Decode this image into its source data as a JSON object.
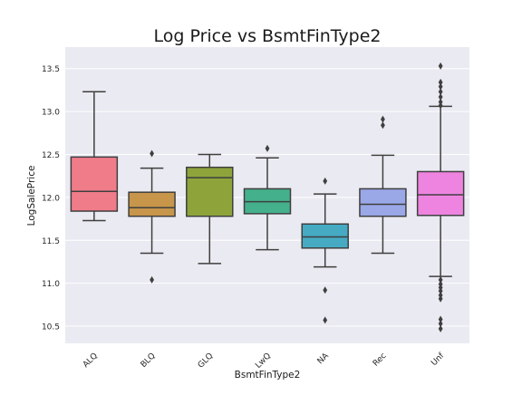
{
  "chart_data": {
    "type": "box",
    "title": "Log Price vs BsmtFinType2",
    "xlabel": "BsmtFinType2",
    "ylabel": "LogSalePrice",
    "ylim": [
      10.3,
      13.75
    ],
    "yticks": [
      10.5,
      11.0,
      11.5,
      12.0,
      12.5,
      13.0,
      13.5
    ],
    "ytick_labels": [
      "10.5",
      "11.0",
      "11.5",
      "12.0",
      "12.5",
      "13.0",
      "13.5"
    ],
    "grid": true,
    "categories": [
      "ALQ",
      "BLQ",
      "GLQ",
      "LwQ",
      "NA",
      "Rec",
      "Unf"
    ],
    "boxes": [
      {
        "category": "ALQ",
        "color": "#f07c8a",
        "whisker_low": 11.73,
        "q1": 11.84,
        "median": 12.07,
        "q3": 12.47,
        "whisker_high": 13.23,
        "outliers": []
      },
      {
        "category": "BLQ",
        "color": "#c7964a",
        "whisker_low": 11.35,
        "q1": 11.78,
        "median": 11.88,
        "q3": 12.06,
        "whisker_high": 12.34,
        "outliers": [
          12.51,
          11.04
        ]
      },
      {
        "category": "GLQ",
        "color": "#8ea43b",
        "whisker_low": 11.23,
        "q1": 11.78,
        "median": 12.23,
        "q3": 12.35,
        "whisker_high": 12.5,
        "outliers": []
      },
      {
        "category": "LwQ",
        "color": "#45b08c",
        "whisker_low": 11.39,
        "q1": 11.81,
        "median": 11.95,
        "q3": 12.1,
        "whisker_high": 12.46,
        "outliers": [
          12.57
        ]
      },
      {
        "category": "NA",
        "color": "#46aac3",
        "whisker_low": 11.19,
        "q1": 11.41,
        "median": 11.54,
        "q3": 11.69,
        "whisker_high": 12.04,
        "outliers": [
          12.19,
          10.92,
          10.57
        ]
      },
      {
        "category": "Rec",
        "color": "#9aa8e8",
        "whisker_low": 11.35,
        "q1": 11.78,
        "median": 11.92,
        "q3": 12.1,
        "whisker_high": 12.49,
        "outliers": [
          12.84,
          12.91
        ]
      },
      {
        "category": "Unf",
        "color": "#ee84e0",
        "whisker_low": 11.08,
        "q1": 11.79,
        "median": 12.03,
        "q3": 12.3,
        "whisker_high": 13.06,
        "outliers": [
          13.53,
          13.34,
          13.29,
          13.23,
          13.17,
          13.11,
          13.07,
          11.04,
          10.99,
          10.95,
          10.91,
          10.86,
          10.82,
          10.58,
          10.53,
          10.47
        ]
      }
    ]
  },
  "colors": {
    "plot_background": "#eaeaf2",
    "grid": "#ffffff",
    "box_edge": "#3f3f3f",
    "text": "#1a1a1a",
    "tick_text": "#262626"
  }
}
